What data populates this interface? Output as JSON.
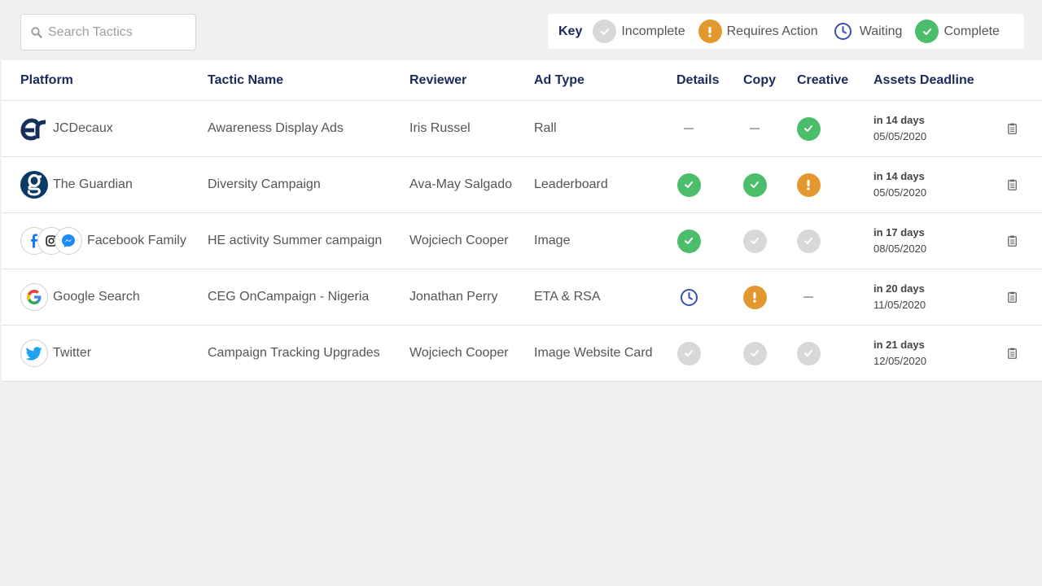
{
  "search": {
    "placeholder": "Search Tactics"
  },
  "legend": {
    "key_label": "Key",
    "items": [
      {
        "status": "incomplete",
        "label": "Incomplete"
      },
      {
        "status": "action",
        "label": "Requires Action"
      },
      {
        "status": "waiting",
        "label": "Waiting"
      },
      {
        "status": "complete",
        "label": "Complete"
      }
    ]
  },
  "colors": {
    "heading": "#1a2a5a",
    "complete": "#4cbd6a",
    "incomplete": "#d8d8d8",
    "requires_action": "#e2982f",
    "waiting": "#3a4fb0"
  },
  "table": {
    "headers": {
      "platform": "Platform",
      "tactic": "Tactic Name",
      "reviewer": "Reviewer",
      "adtype": "Ad Type",
      "details": "Details",
      "copy": "Copy",
      "creative": "Creative",
      "deadline": "Assets Deadline"
    },
    "rows": [
      {
        "platform": "JCDecaux",
        "platform_icon": "jcdecaux-logo-icon",
        "tactic": "Awareness Display Ads",
        "reviewer": "Iris Russel",
        "adtype": "Rall",
        "details": "none",
        "copy": "none",
        "creative": "complete",
        "deadline_rel": "in 14 days",
        "deadline_date": "05/05/2020"
      },
      {
        "platform": "The Guardian",
        "platform_icon": "guardian-logo-icon",
        "tactic": "Diversity Campaign",
        "reviewer": "Ava-May Salgado",
        "adtype": "Leaderboard",
        "details": "complete",
        "copy": "complete",
        "creative": "action",
        "deadline_rel": "in 14 days",
        "deadline_date": "05/05/2020"
      },
      {
        "platform": "Facebook Family",
        "platform_icon": "facebook-family-logo-icon",
        "tactic": "HE activity Summer campaign",
        "reviewer": "Wojciech Cooper",
        "adtype": "Image",
        "details": "complete",
        "copy": "incomplete",
        "creative": "incomplete",
        "deadline_rel": "in 17 days",
        "deadline_date": "08/05/2020"
      },
      {
        "platform": "Google Search",
        "platform_icon": "google-logo-icon",
        "tactic": "CEG OnCampaign - Nigeria",
        "reviewer": "Jonathan Perry",
        "adtype": "ETA & RSA",
        "details": "waiting",
        "copy": "action",
        "creative": "none",
        "deadline_rel": "in 20 days",
        "deadline_date": "11/05/2020"
      },
      {
        "platform": "Twitter",
        "platform_icon": "twitter-logo-icon",
        "tactic": "Campaign Tracking Upgrades",
        "reviewer": "Wojciech Cooper",
        "adtype": "Image Website Card",
        "details": "incomplete",
        "copy": "incomplete",
        "creative": "incomplete",
        "deadline_rel": "in 21 days",
        "deadline_date": "12/05/2020"
      }
    ]
  }
}
